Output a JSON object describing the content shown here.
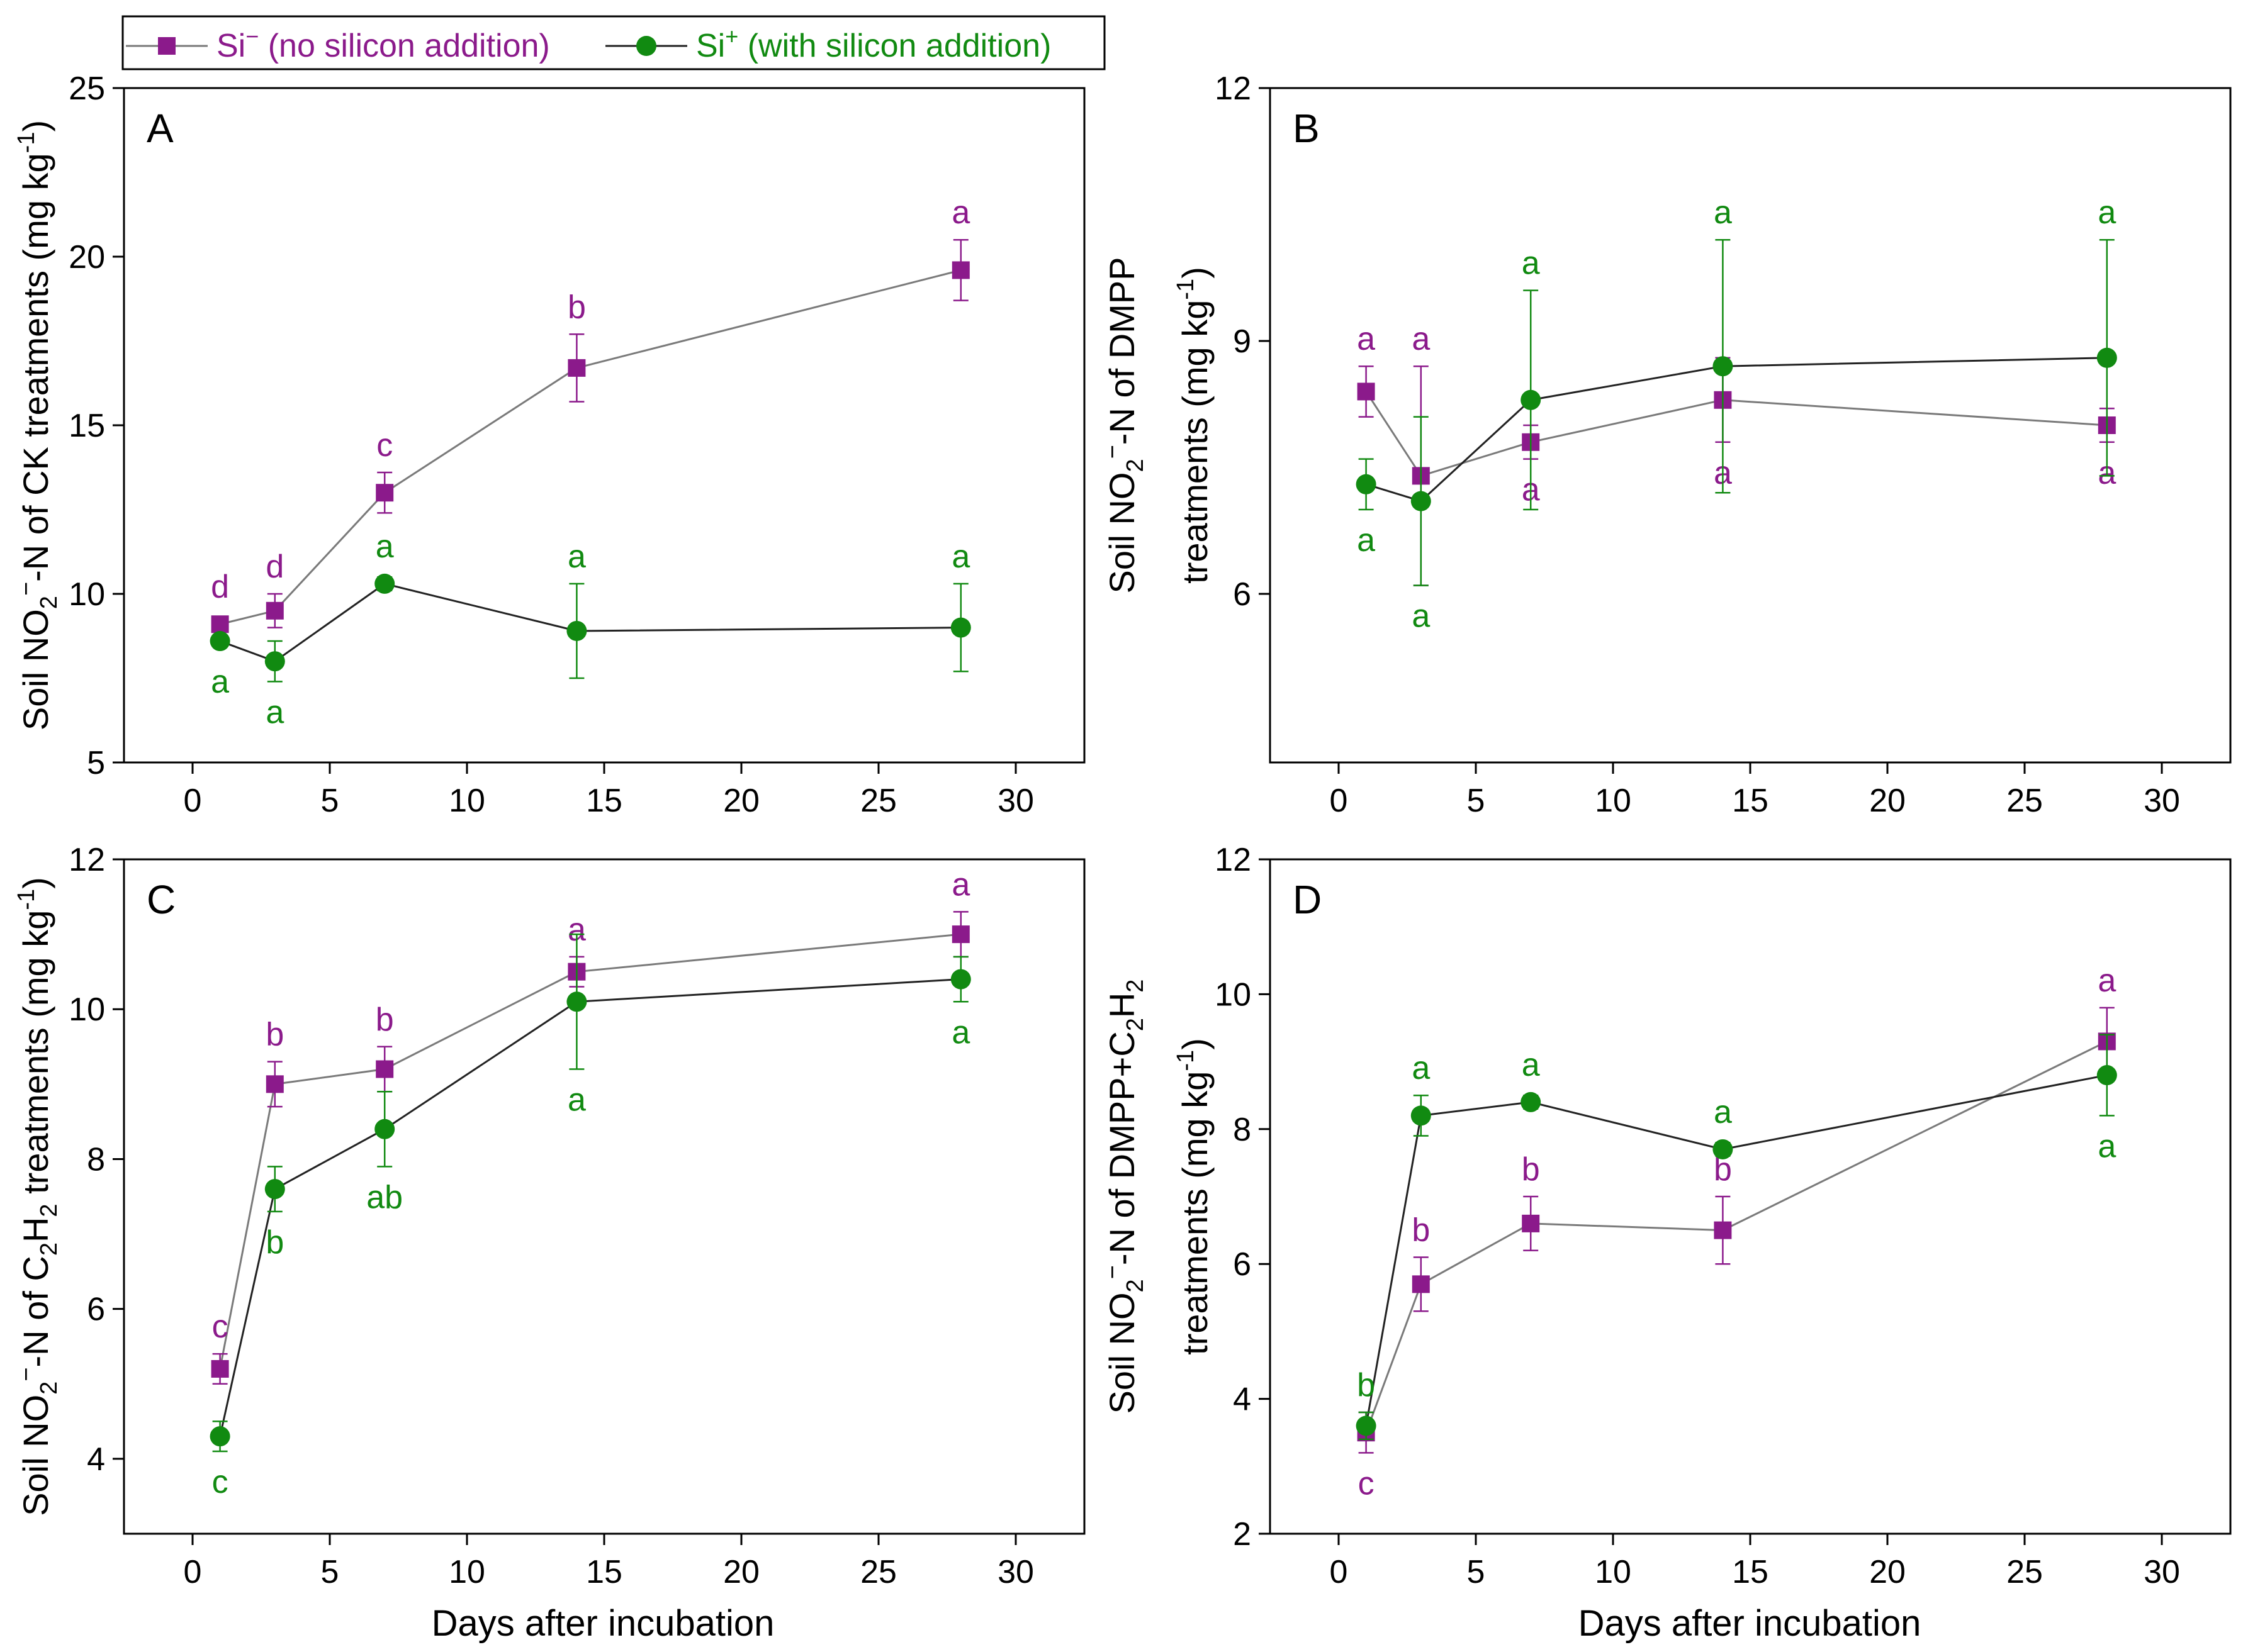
{
  "colors": {
    "si_minus": "#8B1A8B",
    "si_plus": "#118A11",
    "axis": "#000000",
    "line": "#7a7a7a"
  },
  "legend": {
    "si_minus": {
      "prefix": "Si",
      "sup": "−",
      "rest": " (no silicon addition)"
    },
    "si_plus": {
      "prefix": "Si",
      "sup": "+",
      "rest": " (with silicon addition)"
    }
  },
  "x_axis_title": "Days after incubation",
  "chart_data": [
    {
      "id": "A",
      "type": "line",
      "panel_label": "A",
      "ylabel_lines": [
        [
          {
            "t": "Soil NO"
          },
          {
            "t": "2",
            "sub": true
          },
          {
            "t": "−",
            "sup": true
          },
          {
            "t": "-N of CK treatments (mg kg"
          },
          {
            "t": "-1",
            "sup": true
          },
          {
            "t": ")"
          }
        ]
      ],
      "xlim": [
        -2.5,
        32.5
      ],
      "ylim": [
        5,
        25
      ],
      "xticks": [
        0,
        5,
        10,
        15,
        20,
        25,
        30
      ],
      "yticks": [
        5,
        10,
        15,
        20,
        25
      ],
      "x": [
        1,
        3,
        7,
        14,
        28
      ],
      "series": [
        {
          "name": "Si−",
          "marker": "square",
          "values": [
            9.1,
            9.5,
            13.0,
            16.7,
            19.6
          ],
          "err": [
            0.1,
            0.5,
            0.6,
            1.0,
            0.9
          ],
          "labels": [
            "d",
            "d",
            "c",
            "b",
            "a"
          ],
          "label_pos": [
            "above",
            "above",
            "above",
            "above",
            "above"
          ]
        },
        {
          "name": "Si+",
          "marker": "circle",
          "values": [
            8.6,
            8.0,
            10.3,
            8.9,
            9.0
          ],
          "err": [
            0.1,
            0.6,
            0.2,
            1.4,
            1.3
          ],
          "labels": [
            "a",
            "a",
            "a",
            "a",
            "a"
          ],
          "label_pos": [
            "below",
            "below",
            "above",
            "above",
            "above"
          ]
        }
      ]
    },
    {
      "id": "B",
      "type": "line",
      "panel_label": "B",
      "ylabel_lines": [
        [
          {
            "t": "Soil NO"
          },
          {
            "t": "2",
            "sub": true
          },
          {
            "t": "−",
            "sup": true
          },
          {
            "t": "-N of DMPP"
          }
        ],
        [
          {
            "t": "treatments (mg kg"
          },
          {
            "t": "-1",
            "sup": true
          },
          {
            "t": ")"
          }
        ]
      ],
      "xlim": [
        -2.5,
        32.5
      ],
      "ylim": [
        4,
        12
      ],
      "xticks": [
        0,
        5,
        10,
        15,
        20,
        25,
        30
      ],
      "yticks": [
        6,
        9,
        12
      ],
      "x": [
        1,
        3,
        7,
        14,
        28
      ],
      "series": [
        {
          "name": "Si−",
          "marker": "square",
          "values": [
            8.4,
            7.4,
            7.8,
            8.3,
            8.0
          ],
          "err": [
            0.3,
            1.3,
            0.2,
            0.5,
            0.2
          ],
          "labels": [
            "a",
            "a",
            "a",
            "a",
            "a"
          ],
          "label_pos": [
            "above",
            "above",
            "below",
            "below",
            "below"
          ]
        },
        {
          "name": "Si+",
          "marker": "circle",
          "values": [
            7.3,
            7.1,
            8.3,
            8.7,
            8.8
          ],
          "err": [
            0.3,
            1.0,
            1.3,
            1.5,
            1.4
          ],
          "labels": [
            "a",
            "a",
            "a",
            "a",
            "a"
          ],
          "label_pos": [
            "below",
            "below",
            "above",
            "above",
            "above"
          ]
        }
      ]
    },
    {
      "id": "C",
      "type": "line",
      "panel_label": "C",
      "ylabel_lines": [
        [
          {
            "t": "Soil NO"
          },
          {
            "t": "2",
            "sub": true
          },
          {
            "t": "−",
            "sup": true
          },
          {
            "t": "-N of C"
          },
          {
            "t": "2",
            "sub": true
          },
          {
            "t": "H"
          },
          {
            "t": "2",
            "sub": true
          },
          {
            "t": " treatments (mg kg"
          },
          {
            "t": "-1",
            "sup": true
          },
          {
            "t": ")"
          }
        ]
      ],
      "xlim": [
        -2.5,
        32.5
      ],
      "ylim": [
        3,
        12
      ],
      "xticks": [
        0,
        5,
        10,
        15,
        20,
        25,
        30
      ],
      "yticks": [
        4,
        6,
        8,
        10,
        12
      ],
      "x": [
        1,
        3,
        7,
        14,
        28
      ],
      "series": [
        {
          "name": "Si−",
          "marker": "square",
          "values": [
            5.2,
            9.0,
            9.2,
            10.5,
            11.0
          ],
          "err": [
            0.2,
            0.3,
            0.3,
            0.2,
            0.3
          ],
          "labels": [
            "c",
            "b",
            "b",
            "a",
            "a"
          ],
          "label_pos": [
            "above",
            "above",
            "above",
            "above",
            "above"
          ]
        },
        {
          "name": "Si+",
          "marker": "circle",
          "values": [
            4.3,
            7.6,
            8.4,
            10.1,
            10.4
          ],
          "err": [
            0.2,
            0.3,
            0.5,
            0.9,
            0.3
          ],
          "labels": [
            "c",
            "b",
            "ab",
            "a",
            "a"
          ],
          "label_pos": [
            "below",
            "below",
            "below",
            "below",
            "below"
          ]
        }
      ]
    },
    {
      "id": "D",
      "type": "line",
      "panel_label": "D",
      "ylabel_lines": [
        [
          {
            "t": "Soil NO"
          },
          {
            "t": "2",
            "sub": true
          },
          {
            "t": "−",
            "sup": true
          },
          {
            "t": "-N of DMPP+C"
          },
          {
            "t": "2",
            "sub": true
          },
          {
            "t": "H"
          },
          {
            "t": "2",
            "sub": true
          }
        ],
        [
          {
            "t": "treatments (mg kg"
          },
          {
            "t": "-1",
            "sup": true
          },
          {
            "t": ")"
          }
        ]
      ],
      "xlim": [
        -2.5,
        32.5
      ],
      "ylim": [
        2,
        12
      ],
      "xticks": [
        0,
        5,
        10,
        15,
        20,
        25,
        30
      ],
      "yticks": [
        2,
        4,
        6,
        8,
        10,
        12
      ],
      "x": [
        1,
        3,
        7,
        14,
        28
      ],
      "series": [
        {
          "name": "Si−",
          "marker": "square",
          "values": [
            3.5,
            5.7,
            6.6,
            6.5,
            9.3
          ],
          "err": [
            0.3,
            0.4,
            0.4,
            0.5,
            0.5
          ],
          "labels": [
            "c",
            "b",
            "b",
            "b",
            "a"
          ],
          "label_pos": [
            "below",
            "above",
            "above",
            "above",
            "above"
          ]
        },
        {
          "name": "Si+",
          "marker": "circle",
          "values": [
            3.6,
            8.2,
            8.4,
            7.7,
            8.8
          ],
          "err": [
            0.2,
            0.3,
            0.1,
            0.1,
            0.6
          ],
          "labels": [
            "b",
            "a",
            "a",
            "a",
            "a"
          ],
          "label_pos": [
            "above",
            "above",
            "above",
            "above",
            "below"
          ]
        }
      ]
    }
  ]
}
